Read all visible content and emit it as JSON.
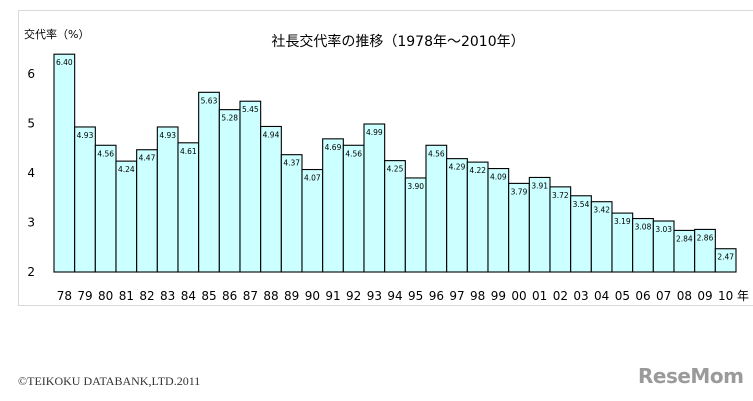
{
  "chart_data": {
    "type": "bar",
    "title": "社長交代率の推移（1978年〜2010年）",
    "ylabel": "交代率（%）",
    "xlabel": "年",
    "categories": [
      "78",
      "79",
      "80",
      "81",
      "82",
      "83",
      "84",
      "85",
      "86",
      "87",
      "88",
      "89",
      "90",
      "91",
      "92",
      "93",
      "94",
      "95",
      "96",
      "97",
      "98",
      "99",
      "00",
      "01",
      "02",
      "03",
      "04",
      "05",
      "06",
      "07",
      "08",
      "09",
      "10"
    ],
    "values": [
      6.4,
      4.93,
      4.56,
      4.24,
      4.47,
      4.93,
      4.61,
      5.63,
      5.28,
      5.45,
      4.94,
      4.37,
      4.07,
      4.69,
      4.56,
      4.99,
      4.25,
      3.9,
      4.56,
      4.29,
      4.22,
      4.09,
      3.79,
      3.91,
      3.72,
      3.54,
      3.42,
      3.19,
      3.08,
      3.03,
      2.84,
      2.86,
      2.47
    ],
    "value_labels": [
      "6.40",
      "4.93",
      "4.56",
      "4.24",
      "4.47",
      "4.93",
      "4.61",
      "5.63",
      "5.28",
      "5.45",
      "4.94",
      "4.37",
      "4.07",
      "4.69",
      "4.56",
      "4.99",
      "4.25",
      "3.90",
      "4.56",
      "4.29",
      "4.22",
      "4.09",
      "3.79",
      "3.91",
      "3.72",
      "3.54",
      "3.42",
      "3.19",
      "3.08",
      "3.03",
      "2.84",
      "2.86",
      "2.47"
    ],
    "ylim": [
      2,
      6.6
    ],
    "yticks": [
      "2",
      "3",
      "4",
      "5",
      "6"
    ],
    "grid": false,
    "legend": "none",
    "bar_color": "#ccffff",
    "bar_edge_color": "#000000"
  },
  "footer": {
    "copyright": "©TEIKOKU DATABANK,LTD.2011",
    "logo_text": "ReseMom"
  }
}
